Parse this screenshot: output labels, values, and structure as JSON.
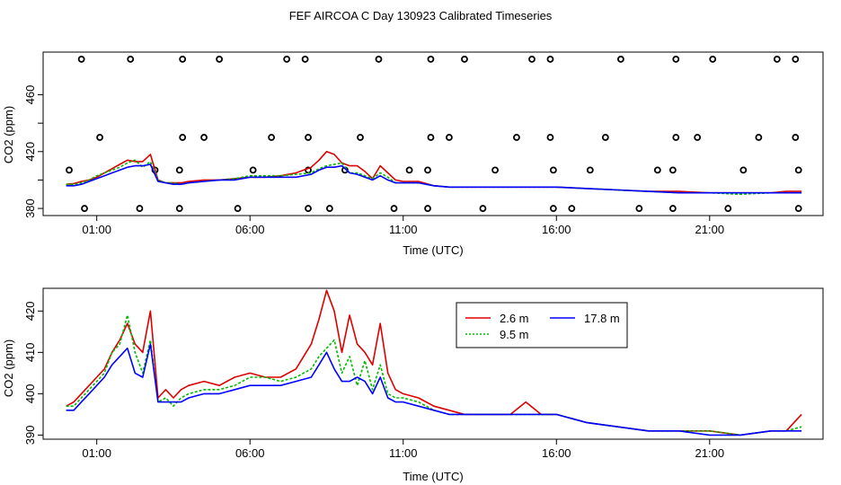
{
  "page": {
    "title": "FEF AIRCOA C  Day 130923  Calibrated Timeseries"
  },
  "colors": {
    "red": "#dd0000",
    "green": "#00bb00",
    "blue": "#0000ff",
    "axis": "#000000"
  },
  "chart_data": [
    {
      "type": "scatter",
      "title": "FEF AIRCOA C  Day 130923  Calibrated Timeseries",
      "xlabel": "Time (UTC)",
      "ylabel": "CO2 (ppm)",
      "xlim": [
        -0.75,
        24.7
      ],
      "ylim": [
        375,
        490
      ],
      "x_tick_values": [
        1,
        6,
        11,
        16,
        21
      ],
      "x_tick_labels": [
        "01:00",
        "06:00",
        "11:00",
        "16:00",
        "21:00"
      ],
      "y_tick_values": [
        380,
        400,
        420,
        440,
        460
      ],
      "y_tick_labels": [
        "380",
        "",
        "420",
        "",
        "460"
      ],
      "cal_points": {
        "name": "calibration standards",
        "x": [
          0.5,
          2.1,
          3.8,
          5.0,
          7.2,
          7.8,
          10.2,
          11.9,
          13.0,
          15.2,
          15.8,
          18.1,
          19.9,
          21.1,
          23.2,
          23.8,
          0.6,
          2.4,
          3.7,
          5.6,
          7.9,
          8.6,
          10.7,
          11.8,
          13.6,
          15.9,
          16.5,
          18.7,
          19.8,
          21.6,
          23.9,
          1.1,
          3.8,
          4.5,
          6.7,
          7.9,
          9.6,
          11.9,
          12.5,
          14.7,
          15.8,
          17.6,
          19.9,
          20.6,
          22.6,
          23.8,
          0.1,
          2.9,
          3.7,
          6.1,
          7.9,
          9.1,
          11.2,
          11.8,
          14.0,
          15.9,
          17.1,
          19.3,
          19.8,
          22.1,
          23.9
        ],
        "y": [
          485,
          485,
          485,
          485,
          485,
          485,
          485,
          485,
          485,
          485,
          485,
          485,
          485,
          485,
          485,
          485,
          380,
          380,
          380,
          380,
          380,
          380,
          380,
          380,
          380,
          380,
          380,
          380,
          380,
          380,
          380,
          430,
          430,
          430,
          430,
          430,
          430,
          430,
          430,
          430,
          430,
          430,
          430,
          430,
          430,
          430,
          407,
          407,
          407,
          407,
          407,
          407,
          407,
          407,
          407,
          407,
          407,
          407,
          407,
          407,
          407
        ]
      },
      "x": [
        0,
        0.25,
        0.5,
        0.75,
        1,
        1.25,
        1.5,
        1.75,
        2,
        2.25,
        2.5,
        2.75,
        3,
        3.25,
        3.5,
        3.75,
        4,
        4.5,
        5,
        5.5,
        6,
        6.5,
        7,
        7.5,
        8,
        8.25,
        8.5,
        8.75,
        9,
        9.25,
        9.5,
        9.75,
        10,
        10.25,
        10.5,
        10.75,
        11,
        11.5,
        12,
        12.5,
        13,
        14,
        14.5,
        15,
        15.5,
        16,
        17,
        18,
        19,
        20,
        21,
        22,
        23,
        23.5,
        24
      ],
      "series": [
        {
          "name": "2.6 m",
          "values": [
            397,
            397.5,
            399,
            400,
            402,
            405,
            408,
            411,
            414,
            413,
            413,
            418,
            400,
            398,
            398,
            398,
            399,
            400,
            400,
            401,
            402,
            402,
            403,
            405,
            409,
            414,
            420,
            418,
            412,
            410,
            410,
            406,
            401,
            410,
            405,
            400,
            399,
            399,
            396,
            395,
            395,
            395,
            395,
            395,
            395,
            395,
            394,
            393,
            392,
            392,
            391,
            391,
            391,
            392,
            392
          ]
        },
        {
          "name": "9.5 m",
          "values": [
            397,
            397,
            398,
            400,
            403,
            405,
            407,
            409,
            412,
            414,
            409,
            413,
            400,
            398,
            398,
            397,
            398,
            399,
            400,
            401,
            403,
            403,
            403,
            404,
            405,
            408,
            410,
            411,
            412,
            405,
            405,
            403,
            401,
            405,
            402,
            398,
            398,
            398,
            396,
            395,
            395,
            395,
            395,
            395,
            395,
            395,
            394,
            393,
            392,
            391,
            391,
            390,
            391,
            391,
            391
          ]
        },
        {
          "name": "17.8 m",
          "values": [
            396,
            396,
            397,
            399,
            401,
            403,
            405,
            407,
            409,
            410,
            410,
            411,
            399,
            398,
            397,
            397,
            398,
            399,
            400,
            400,
            402,
            402,
            402,
            402,
            404,
            407,
            409,
            409,
            410,
            405,
            404,
            402,
            400,
            403,
            400,
            398,
            398,
            398,
            396,
            395,
            395,
            395,
            395,
            395,
            395,
            395,
            394,
            393,
            392,
            391,
            391,
            391,
            391,
            391,
            391
          ]
        }
      ]
    },
    {
      "type": "line",
      "title": "",
      "xlabel": "Time (UTC)",
      "ylabel": "CO2 (ppm)",
      "xlim": [
        -0.75,
        24.7
      ],
      "ylim": [
        389,
        425.5
      ],
      "x_tick_values": [
        1,
        6,
        11,
        16,
        21
      ],
      "x_tick_labels": [
        "01:00",
        "06:00",
        "11:00",
        "16:00",
        "21:00"
      ],
      "y_tick_values": [
        390,
        400,
        410,
        420
      ],
      "y_tick_labels": [
        "390",
        "400",
        "410",
        "420"
      ],
      "legend": {
        "placement": "top-center",
        "entries": [
          "2.6 m",
          "9.5 m",
          "17.8 m"
        ]
      },
      "x": [
        0,
        0.25,
        0.5,
        0.75,
        1,
        1.25,
        1.5,
        1.75,
        2,
        2.25,
        2.5,
        2.75,
        3,
        3.25,
        3.5,
        3.75,
        4,
        4.5,
        5,
        5.5,
        6,
        6.5,
        7,
        7.5,
        8,
        8.25,
        8.5,
        8.75,
        9,
        9.25,
        9.5,
        9.75,
        10,
        10.25,
        10.5,
        10.75,
        11,
        11.5,
        12,
        12.5,
        13,
        14,
        14.5,
        15,
        15.5,
        16,
        17,
        18,
        19,
        20,
        21,
        22,
        23,
        23.5,
        24
      ],
      "series": [
        {
          "name": "2.6 m",
          "values": [
            397,
            398,
            400,
            402,
            404,
            406,
            410,
            413,
            417,
            412,
            410,
            420,
            399,
            401,
            399,
            401,
            402,
            403,
            402,
            404,
            405,
            404,
            404,
            406,
            412,
            418,
            425,
            420,
            410,
            419,
            412,
            410,
            407,
            417,
            405,
            401,
            400,
            399,
            397,
            396,
            395,
            395,
            395,
            398,
            395,
            395,
            393,
            392,
            391,
            391,
            391,
            390,
            391,
            391,
            395
          ]
        },
        {
          "name": "9.5 m",
          "values": [
            397,
            397,
            399,
            401,
            403,
            405,
            410,
            412,
            419,
            410,
            405,
            413,
            398,
            399,
            397,
            399,
            400,
            401,
            401,
            402,
            404,
            404,
            403,
            404,
            406,
            409,
            411,
            413,
            405,
            409,
            402,
            408,
            401,
            407,
            400,
            399,
            399,
            398,
            396,
            395,
            395,
            395,
            395,
            395,
            395,
            395,
            393,
            392,
            391,
            391,
            391,
            390,
            391,
            391,
            392
          ]
        },
        {
          "name": "17.8 m",
          "values": [
            396,
            396,
            398,
            400,
            402,
            404,
            407,
            409,
            411,
            405,
            404,
            412,
            398,
            398,
            398,
            398,
            399,
            400,
            400,
            401,
            402,
            402,
            402,
            403,
            404,
            407,
            410,
            406,
            403,
            403,
            404,
            403,
            400,
            404,
            399,
            398,
            398,
            397,
            396,
            395,
            395,
            395,
            395,
            395,
            395,
            395,
            393,
            392,
            391,
            391,
            390,
            390,
            391,
            391,
            391
          ]
        }
      ]
    }
  ]
}
